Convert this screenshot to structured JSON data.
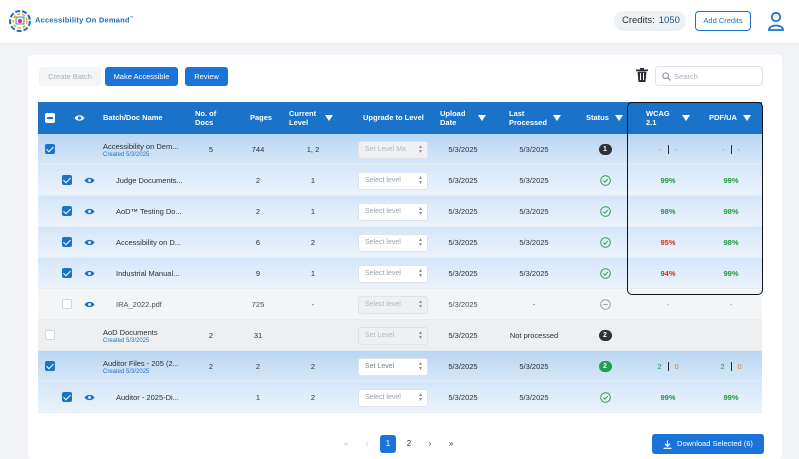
{
  "header": {
    "logo_text": "Accessibility On Demand",
    "credits_label": "Credits:",
    "credits_value": "1050",
    "add_credits_label": "Add Credits"
  },
  "toolbar": {
    "create_batch_label": "Create Batch",
    "make_accessible_label": "Make Accessible",
    "review_label": "Review",
    "search_placeholder": "Search"
  },
  "table": {
    "columns": {
      "name": "Batch/Doc Name",
      "docs": "No. of Docs",
      "pages": "Pages",
      "current_level": "Current Level",
      "upgrade": "Upgrade to Level",
      "upload_date": "Upload Date",
      "last_processed": "Last Processed",
      "status": "Status",
      "wcag": "WCAG 2.1",
      "pdfua": "PDF/UA"
    },
    "rows": [
      {
        "name": "Accessibility on Dem...",
        "created": "Created 5/3/2025",
        "docs": "5",
        "pages": "744",
        "level": "1, 2",
        "select": "Set Level Ma",
        "upload": "5/3/2025",
        "processed": "5/3/2025",
        "status_badge": "1",
        "wcag": "-",
        "wcag2": "-",
        "pdfua": "-",
        "pdfua2": "-"
      },
      {
        "name": "Judge Documents...",
        "pages": "2",
        "level": "1",
        "select": "Select level",
        "upload": "5/3/2025",
        "processed": "5/3/2025",
        "wcag": "99%",
        "pdfua": "99%"
      },
      {
        "name": "AoD™ Testing Do...",
        "pages": "2",
        "level": "1",
        "select": "Select level",
        "upload": "5/3/2025",
        "processed": "5/3/2025",
        "wcag": "98%",
        "pdfua": "98%"
      },
      {
        "name": "Accessibility on D...",
        "pages": "6",
        "level": "2",
        "select": "Select level",
        "upload": "5/3/2025",
        "processed": "5/3/2025",
        "wcag": "95%",
        "pdfua": "98%"
      },
      {
        "name": "Industrial Manual...",
        "pages": "9",
        "level": "1",
        "select": "Select level",
        "upload": "5/3/2025",
        "processed": "5/3/2025",
        "wcag": "94%",
        "pdfua": "99%"
      },
      {
        "name": "IRA_2022.pdf",
        "pages": "725",
        "level": "-",
        "select": "Select level",
        "upload": "5/3/2025",
        "processed": "-",
        "wcag": "-",
        "pdfua": "-"
      },
      {
        "name": "AoD Documents",
        "created": "Created 5/3/2025",
        "docs": "2",
        "pages": "31",
        "select": "Set Level",
        "upload": "5/3/2025",
        "processed": "Not processed",
        "status_badge": "2"
      },
      {
        "name": "Auditor Files - 205 (2...",
        "created": "Created 5/3/2025",
        "docs": "2",
        "pages": "2",
        "level": "2",
        "select": "Set Level",
        "upload": "5/3/2025",
        "processed": "5/3/2025",
        "status_badge": "2",
        "wcag": "2",
        "wcag2": "0",
        "pdfua": "2",
        "pdfua2": "0"
      },
      {
        "name": "Auditor - 2025-Di...",
        "pages": "1",
        "level": "2",
        "select": "Select level",
        "upload": "5/3/2025",
        "processed": "5/3/2025",
        "wcag": "99%",
        "pdfua": "99%"
      }
    ]
  },
  "pagination": {
    "first": "«",
    "prev": "‹",
    "page1": "1",
    "page2": "2",
    "next": "›",
    "last": "»"
  },
  "download_label": "Download Selected (6)",
  "colors": {
    "primary": "#1a73d9",
    "green": "#1e9a3a",
    "red": "#d0341d",
    "orange": "#f07d1a"
  }
}
